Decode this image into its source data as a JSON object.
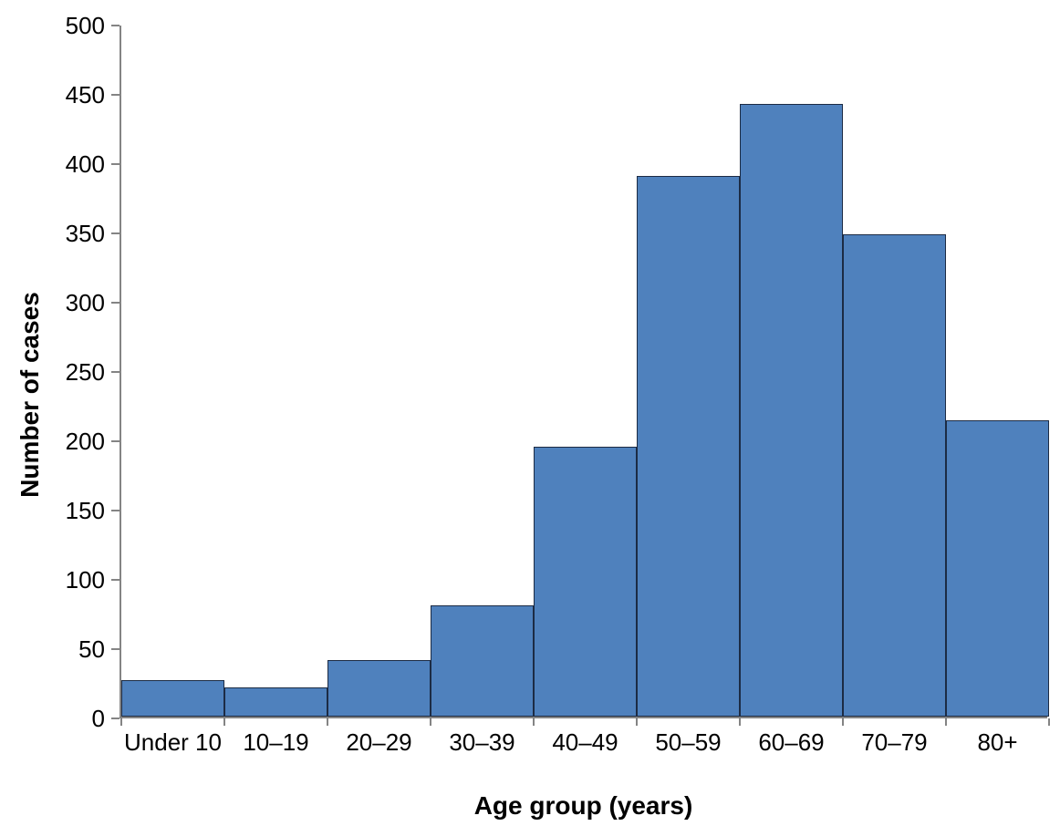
{
  "chart_data": {
    "type": "bar",
    "categories": [
      "Under 10",
      "10–19",
      "20–29",
      "30–39",
      "40–49",
      "50–59",
      "60–69",
      "70–79",
      "80+"
    ],
    "values": [
      26,
      21,
      41,
      80,
      195,
      390,
      442,
      348,
      214
    ],
    "xlabel": "Age group (years)",
    "ylabel": "Number of cases",
    "ylim": [
      0,
      500
    ],
    "yticks": [
      0,
      50,
      100,
      150,
      200,
      250,
      300,
      350,
      400,
      450,
      500
    ],
    "grid": false,
    "legend_position": "none",
    "bar_gap": 0,
    "colors": {
      "bar_fill": "#4F81BD",
      "bar_border": "#1C2B44",
      "axis": "#848484",
      "text": "#000000",
      "background": "#FFFFFF"
    }
  }
}
